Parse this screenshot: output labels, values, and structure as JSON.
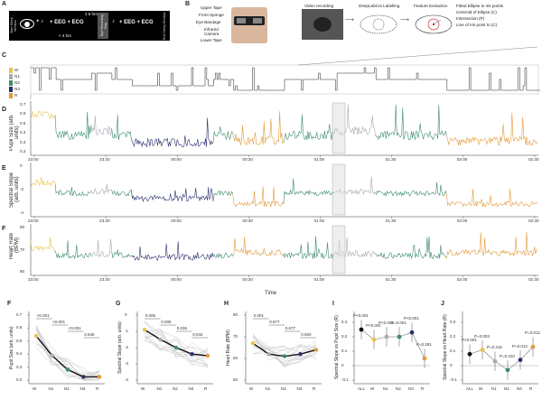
{
  "panel_a": {
    "letter": "A",
    "start_window": "Start Sleep Window",
    "end_window": "End Sleep Window",
    "before_gap": "+ EEG + ECG",
    "after_gap": "+ EEG + ECG",
    "gap_label": "Eye Recording Gap",
    "span_total": "2.5 hrs",
    "span_first": "< 4 hrs"
  },
  "panel_b": {
    "letter": "B",
    "device_labels": [
      "Upper Tape",
      "Front Sponge",
      "Eye Bandage",
      "Infrared Camera",
      "Lower Tape"
    ],
    "steps": [
      "Video recording",
      "DeepLabCut Labelling",
      "Feature Extraction"
    ],
    "features": [
      "Fitted Ellipse to iris points",
      "Centroid of Ellipse (C)",
      "Intersection (P)",
      "Line of Iris point to (C)"
    ]
  },
  "panel_c": {
    "letter": "C",
    "stages": [
      "W",
      "N1",
      "N2",
      "N3",
      "R"
    ],
    "colors": {
      "W": "#e8c34d",
      "N1": "#a9a9b3",
      "N2": "#3d8c6b",
      "N3": "#2a2f6e",
      "R": "#e39a3b"
    }
  },
  "panel_d": {
    "letter": "D",
    "ylabel": "Pupil Size (arb. units)",
    "yticks": [
      "0.7",
      "0.6",
      "0.5",
      "0.4",
      "0.3",
      "0.2"
    ]
  },
  "panel_e": {
    "letter": "E",
    "ylabel": "Spectral Slope (arb. units)",
    "yticks": [
      "0",
      "-2",
      "-4"
    ]
  },
  "panel_f": {
    "letter": "F",
    "ylabel": "Heart Rate (BPM)",
    "yticks": [
      "80",
      "70",
      "60"
    ]
  },
  "time_axis": {
    "labels": [
      "23:00",
      "23:30",
      "00:00",
      "00:30",
      "01:00",
      "01:30",
      "02:00",
      "02:30"
    ],
    "xlabel": "Time"
  },
  "bottom_panels": [
    {
      "letter": "F",
      "ylabel": "Pupil Size (arb. units)",
      "yticks": [
        "0.7",
        "0.6",
        "0.5",
        "0.4",
        "0.3",
        "0.2"
      ],
      "xticks": [
        "W",
        "N1",
        "N2",
        "N3",
        "R"
      ],
      "pvals": [
        "<0.001",
        "<0.001",
        "<0.001",
        "0.546"
      ]
    },
    {
      "letter": "G",
      "ylabel": "Spectral Slope (arb. units)",
      "yticks": [
        "0",
        "-1",
        "-2",
        "-3",
        "-4"
      ],
      "xticks": [
        "W",
        "N1",
        "N2",
        "N3",
        "R"
      ],
      "pvals": [
        "0.005",
        "0.005",
        "0.036",
        "0.042"
      ]
    },
    {
      "letter": "H",
      "ylabel": "Heart Rate (BPM)",
      "yticks": [
        "80",
        "70",
        "60",
        "50"
      ],
      "xticks": [
        "W",
        "N1",
        "N2",
        "N3",
        "R"
      ],
      "pvals": [
        "0.001",
        "0.677",
        "0.677",
        "0.650"
      ]
    },
    {
      "letter": "I",
      "ylabel": "Spectral Slope vs Pupil Size (R)",
      "yticks": [
        "0.3",
        "0.2",
        "0.1",
        "0",
        "-0.1"
      ],
      "xticks": [
        "ALL",
        "W",
        "N1",
        "N2",
        "N3",
        "R"
      ],
      "pvals": [
        "P<0.001",
        "P<0.001",
        "P<0.001",
        "P=0.001",
        "P<0.001",
        "P=0.291"
      ]
    },
    {
      "letter": "J",
      "ylabel": "Spectral Slope vs Heart Rate (R)",
      "yticks": [
        "0.3",
        "0.2",
        "0.1",
        "0",
        "-0.1"
      ],
      "xticks": [
        "ALL",
        "W",
        "N1",
        "N2",
        "N3",
        "R"
      ],
      "pvals": [
        "P<0.001",
        "P=0.003",
        "P=0.215",
        "P=0.310",
        "P=0.012",
        "P=0.012"
      ]
    }
  ],
  "chart_data": [
    {
      "type": "line",
      "title": "",
      "ylabel": "Pupil Size (arb. units)",
      "categories": [
        "W",
        "N1",
        "N2",
        "N3",
        "R"
      ],
      "series": [
        {
          "values": [
            0.54,
            0.39,
            0.28,
            0.225,
            0.225
          ]
        }
      ],
      "ylim": [
        0.2,
        0.7
      ]
    },
    {
      "type": "line",
      "title": "",
      "ylabel": "Spectral Slope (arb. units)",
      "categories": [
        "W",
        "N1",
        "N2",
        "N3",
        "R"
      ],
      "series": [
        {
          "values": [
            -0.9,
            -1.5,
            -2.0,
            -2.4,
            -2.5
          ]
        }
      ],
      "ylim": [
        -4,
        0
      ]
    },
    {
      "type": "line",
      "title": "",
      "ylabel": "Heart Rate (BPM)",
      "categories": [
        "W",
        "N1",
        "N2",
        "N3",
        "R"
      ],
      "series": [
        {
          "values": [
            67,
            62,
            61,
            62,
            64
          ]
        }
      ],
      "ylim": [
        50,
        80
      ]
    },
    {
      "type": "scatter",
      "title": "",
      "ylabel": "Spectral Slope vs Pupil Size (R)",
      "categories": [
        "ALL",
        "W",
        "N1",
        "N2",
        "N3",
        "R"
      ],
      "series": [
        {
          "values": [
            0.25,
            0.18,
            0.2,
            0.2,
            0.23,
            0.05
          ]
        }
      ],
      "ylim": [
        -0.1,
        0.35
      ]
    },
    {
      "type": "scatter",
      "title": "",
      "ylabel": "Spectral Slope vs Heart Rate (R)",
      "categories": [
        "ALL",
        "W",
        "N1",
        "N2",
        "N3",
        "R"
      ],
      "series": [
        {
          "values": [
            0.08,
            0.11,
            0.03,
            -0.03,
            0.04,
            0.13
          ]
        }
      ],
      "ylim": [
        -0.1,
        0.35
      ]
    }
  ]
}
